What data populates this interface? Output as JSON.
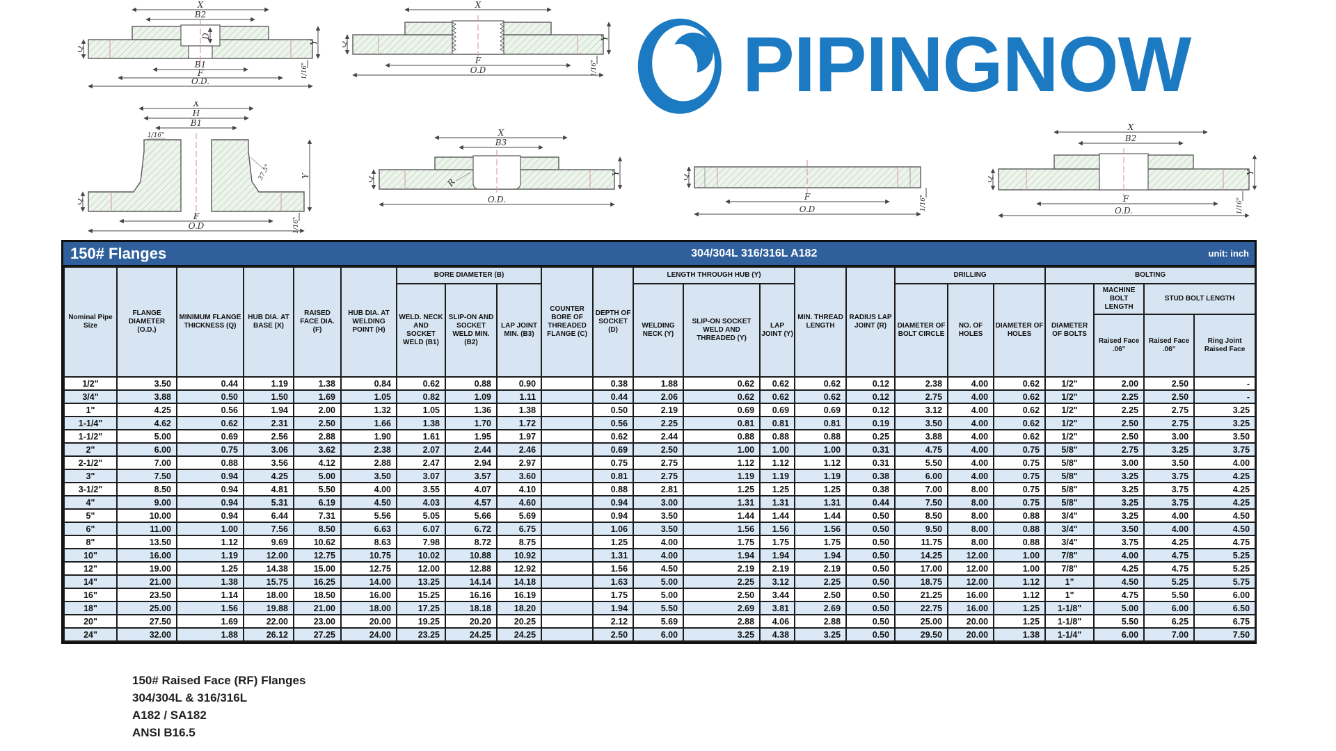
{
  "logo": {
    "text": "PIPINGNOW",
    "color": "#1b7ac1"
  },
  "colors": {
    "title_bar": "#30609c",
    "header_cell": "#d7e4f2",
    "row_alt": "#dbe9f7"
  },
  "drawings": {
    "socket_weld": {
      "x": "X",
      "b2": "B2",
      "d": "D",
      "q": "Q",
      "b1": "B1",
      "f": "F",
      "od": "O.D.",
      "y": "Y",
      "gap": "1/16\""
    },
    "threaded": {
      "x": "X",
      "q": "Q",
      "f": "F",
      "od": "O.D",
      "y": "Y",
      "gap": "1/16\""
    },
    "weld_neck": {
      "x": "X",
      "h": "H",
      "b1": "B1",
      "gap_top": "1/16\"",
      "angle": "37.5°",
      "q": "Q",
      "f": "F",
      "od": "O.D",
      "y": "Y",
      "gap_bottom": "1/16\""
    },
    "lap_joint": {
      "x": "X",
      "b3": "B3",
      "q": "Q",
      "r": "R",
      "od": "O.D.",
      "y": "Y"
    },
    "blind": {
      "q": "Q",
      "f": "F",
      "od": "O.D",
      "gap": "1/16\""
    },
    "slip_on": {
      "x": "X",
      "b2": "B2",
      "q": "Q",
      "f": "F",
      "od": "O.D.",
      "y": "Y",
      "gap": "1/16\""
    }
  },
  "table": {
    "title": "150# Flanges",
    "subtitle": "304/304L  316/316L  A182",
    "unit_label": "unit: inch",
    "groups": {
      "bore": "BORE DIAMETER (B)",
      "hub_length": "LENGTH THROUGH HUB (Y)",
      "drilling": "DRILLING",
      "bolting": "BOLTING",
      "machine_bolt": "MACHINE BOLT LENGTH",
      "stud_bolt": "STUD BOLT LENGTH"
    },
    "columns": {
      "size": "Nominal Pipe Size",
      "od": "FLANGE DIAMETER (O.D.)",
      "q": "MINIMUM FLANGE THICKNESS (Q)",
      "x": "HUB DIA. AT BASE (X)",
      "f": "RAISED FACE DIA. (F)",
      "h": "HUB DIA. AT WELDING POINT (H)",
      "b1": "WELD. NECK AND SOCKET WELD (B1)",
      "b2": "SLIP-ON AND SOCKET WELD MIN. (B2)",
      "b3": "LAP JOINT MIN. (B3)",
      "c": "COUNTER BORE OF THREADED FLANGE (C)",
      "d": "DEPTH OF SOCKET (D)",
      "y_wn": "WELDING NECK (Y)",
      "y_so": "SLIP-ON SOCKET WELD AND THREADED (Y)",
      "y_lj": "LAP JOINT (Y)",
      "thread": "MIN. THREAD LENGTH",
      "r": "RADIUS LAP JOINT (R)",
      "bolt_circle": "DIAMETER OF BOLT CIRCLE",
      "holes": "NO. OF HOLES",
      "hole_dia": "DIAMETER OF HOLES",
      "bolt_dia": "DIAMETER OF BOLTS",
      "machine_rf": "Raised Face .06\"",
      "stud_rf": "Raised Face .06\"",
      "ring_joint": "Ring Joint Raised Face"
    },
    "rows": [
      [
        "1/2\"",
        "3.50",
        "0.44",
        "1.19",
        "1.38",
        "0.84",
        "0.62",
        "0.88",
        "0.90",
        "",
        "0.38",
        "1.88",
        "0.62",
        "0.62",
        "0.62",
        "0.12",
        "2.38",
        "4.00",
        "0.62",
        "1/2\"",
        "2.00",
        "2.50",
        "-"
      ],
      [
        "3/4\"",
        "3.88",
        "0.50",
        "1.50",
        "1.69",
        "1.05",
        "0.82",
        "1.09",
        "1.11",
        "",
        "0.44",
        "2.06",
        "0.62",
        "0.62",
        "0.62",
        "0.12",
        "2.75",
        "4.00",
        "0.62",
        "1/2\"",
        "2.25",
        "2.50",
        "-"
      ],
      [
        "1\"",
        "4.25",
        "0.56",
        "1.94",
        "2.00",
        "1.32",
        "1.05",
        "1.36",
        "1.38",
        "",
        "0.50",
        "2.19",
        "0.69",
        "0.69",
        "0.69",
        "0.12",
        "3.12",
        "4.00",
        "0.62",
        "1/2\"",
        "2.25",
        "2.75",
        "3.25"
      ],
      [
        "1-1/4\"",
        "4.62",
        "0.62",
        "2.31",
        "2.50",
        "1.66",
        "1.38",
        "1.70",
        "1.72",
        "",
        "0.56",
        "2.25",
        "0.81",
        "0.81",
        "0.81",
        "0.19",
        "3.50",
        "4.00",
        "0.62",
        "1/2\"",
        "2.50",
        "2.75",
        "3.25"
      ],
      [
        "1-1/2\"",
        "5.00",
        "0.69",
        "2.56",
        "2.88",
        "1.90",
        "1.61",
        "1.95",
        "1.97",
        "",
        "0.62",
        "2.44",
        "0.88",
        "0.88",
        "0.88",
        "0.25",
        "3.88",
        "4.00",
        "0.62",
        "1/2\"",
        "2.50",
        "3.00",
        "3.50"
      ],
      [
        "2\"",
        "6.00",
        "0.75",
        "3.06",
        "3.62",
        "2.38",
        "2.07",
        "2.44",
        "2.46",
        "",
        "0.69",
        "2.50",
        "1.00",
        "1.00",
        "1.00",
        "0.31",
        "4.75",
        "4.00",
        "0.75",
        "5/8\"",
        "2.75",
        "3.25",
        "3.75"
      ],
      [
        "2-1/2\"",
        "7.00",
        "0.88",
        "3.56",
        "4.12",
        "2.88",
        "2.47",
        "2.94",
        "2.97",
        "",
        "0.75",
        "2.75",
        "1.12",
        "1.12",
        "1.12",
        "0.31",
        "5.50",
        "4.00",
        "0.75",
        "5/8\"",
        "3.00",
        "3.50",
        "4.00"
      ],
      [
        "3\"",
        "7.50",
        "0.94",
        "4.25",
        "5.00",
        "3.50",
        "3.07",
        "3.57",
        "3.60",
        "",
        "0.81",
        "2.75",
        "1.19",
        "1.19",
        "1.19",
        "0.38",
        "6.00",
        "4.00",
        "0.75",
        "5/8\"",
        "3.25",
        "3.75",
        "4.25"
      ],
      [
        "3-1/2\"",
        "8.50",
        "0.94",
        "4.81",
        "5.50",
        "4.00",
        "3.55",
        "4.07",
        "4.10",
        "",
        "0.88",
        "2.81",
        "1.25",
        "1.25",
        "1.25",
        "0.38",
        "7.00",
        "8.00",
        "0.75",
        "5/8\"",
        "3.25",
        "3.75",
        "4.25"
      ],
      [
        "4\"",
        "9.00",
        "0.94",
        "5.31",
        "6.19",
        "4.50",
        "4.03",
        "4.57",
        "4.60",
        "",
        "0.94",
        "3.00",
        "1.31",
        "1.31",
        "1.31",
        "0.44",
        "7.50",
        "8.00",
        "0.75",
        "5/8\"",
        "3.25",
        "3.75",
        "4.25"
      ],
      [
        "5\"",
        "10.00",
        "0.94",
        "6.44",
        "7.31",
        "5.56",
        "5.05",
        "5.66",
        "5.69",
        "",
        "0.94",
        "3.50",
        "1.44",
        "1.44",
        "1.44",
        "0.50",
        "8.50",
        "8.00",
        "0.88",
        "3/4\"",
        "3.25",
        "4.00",
        "4.50"
      ],
      [
        "6\"",
        "11.00",
        "1.00",
        "7.56",
        "8.50",
        "6.63",
        "6.07",
        "6.72",
        "6.75",
        "",
        "1.06",
        "3.50",
        "1.56",
        "1.56",
        "1.56",
        "0.50",
        "9.50",
        "8.00",
        "0.88",
        "3/4\"",
        "3.50",
        "4.00",
        "4.50"
      ],
      [
        "8\"",
        "13.50",
        "1.12",
        "9.69",
        "10.62",
        "8.63",
        "7.98",
        "8.72",
        "8.75",
        "",
        "1.25",
        "4.00",
        "1.75",
        "1.75",
        "1.75",
        "0.50",
        "11.75",
        "8.00",
        "0.88",
        "3/4\"",
        "3.75",
        "4.25",
        "4.75"
      ],
      [
        "10\"",
        "16.00",
        "1.19",
        "12.00",
        "12.75",
        "10.75",
        "10.02",
        "10.88",
        "10.92",
        "",
        "1.31",
        "4.00",
        "1.94",
        "1.94",
        "1.94",
        "0.50",
        "14.25",
        "12.00",
        "1.00",
        "7/8\"",
        "4.00",
        "4.75",
        "5.25"
      ],
      [
        "12\"",
        "19.00",
        "1.25",
        "14.38",
        "15.00",
        "12.75",
        "12.00",
        "12.88",
        "12.92",
        "",
        "1.56",
        "4.50",
        "2.19",
        "2.19",
        "2.19",
        "0.50",
        "17.00",
        "12.00",
        "1.00",
        "7/8\"",
        "4.25",
        "4.75",
        "5.25"
      ],
      [
        "14\"",
        "21.00",
        "1.38",
        "15.75",
        "16.25",
        "14.00",
        "13.25",
        "14.14",
        "14.18",
        "",
        "1.63",
        "5.00",
        "2.25",
        "3.12",
        "2.25",
        "0.50",
        "18.75",
        "12.00",
        "1.12",
        "1\"",
        "4.50",
        "5.25",
        "5.75"
      ],
      [
        "16\"",
        "23.50",
        "1.14",
        "18.00",
        "18.50",
        "16.00",
        "15.25",
        "16.16",
        "16.19",
        "",
        "1.75",
        "5.00",
        "2.50",
        "3.44",
        "2.50",
        "0.50",
        "21.25",
        "16.00",
        "1.12",
        "1\"",
        "4.75",
        "5.50",
        "6.00"
      ],
      [
        "18\"",
        "25.00",
        "1.56",
        "19.88",
        "21.00",
        "18.00",
        "17.25",
        "18.18",
        "18.20",
        "",
        "1.94",
        "5.50",
        "2.69",
        "3.81",
        "2.69",
        "0.50",
        "22.75",
        "16.00",
        "1.25",
        "1-1/8\"",
        "5.00",
        "6.00",
        "6.50"
      ],
      [
        "20\"",
        "27.50",
        "1.69",
        "22.00",
        "23.00",
        "20.00",
        "19.25",
        "20.20",
        "20.25",
        "",
        "2.12",
        "5.69",
        "2.88",
        "4.06",
        "2.88",
        "0.50",
        "25.00",
        "20.00",
        "1.25",
        "1-1/8\"",
        "5.50",
        "6.25",
        "6.75"
      ],
      [
        "24\"",
        "32.00",
        "1.88",
        "26.12",
        "27.25",
        "24.00",
        "23.25",
        "24.25",
        "24.25",
        "",
        "2.50",
        "6.00",
        "3.25",
        "4.38",
        "3.25",
        "0.50",
        "29.50",
        "20.00",
        "1.38",
        "1-1/4\"",
        "6.00",
        "7.00",
        "7.50"
      ]
    ]
  },
  "footer": {
    "lines": [
      "150# Raised Face (RF) Flanges",
      "304/304L & 316/316L",
      "A182 / SA182",
      "ANSI B16.5"
    ]
  }
}
